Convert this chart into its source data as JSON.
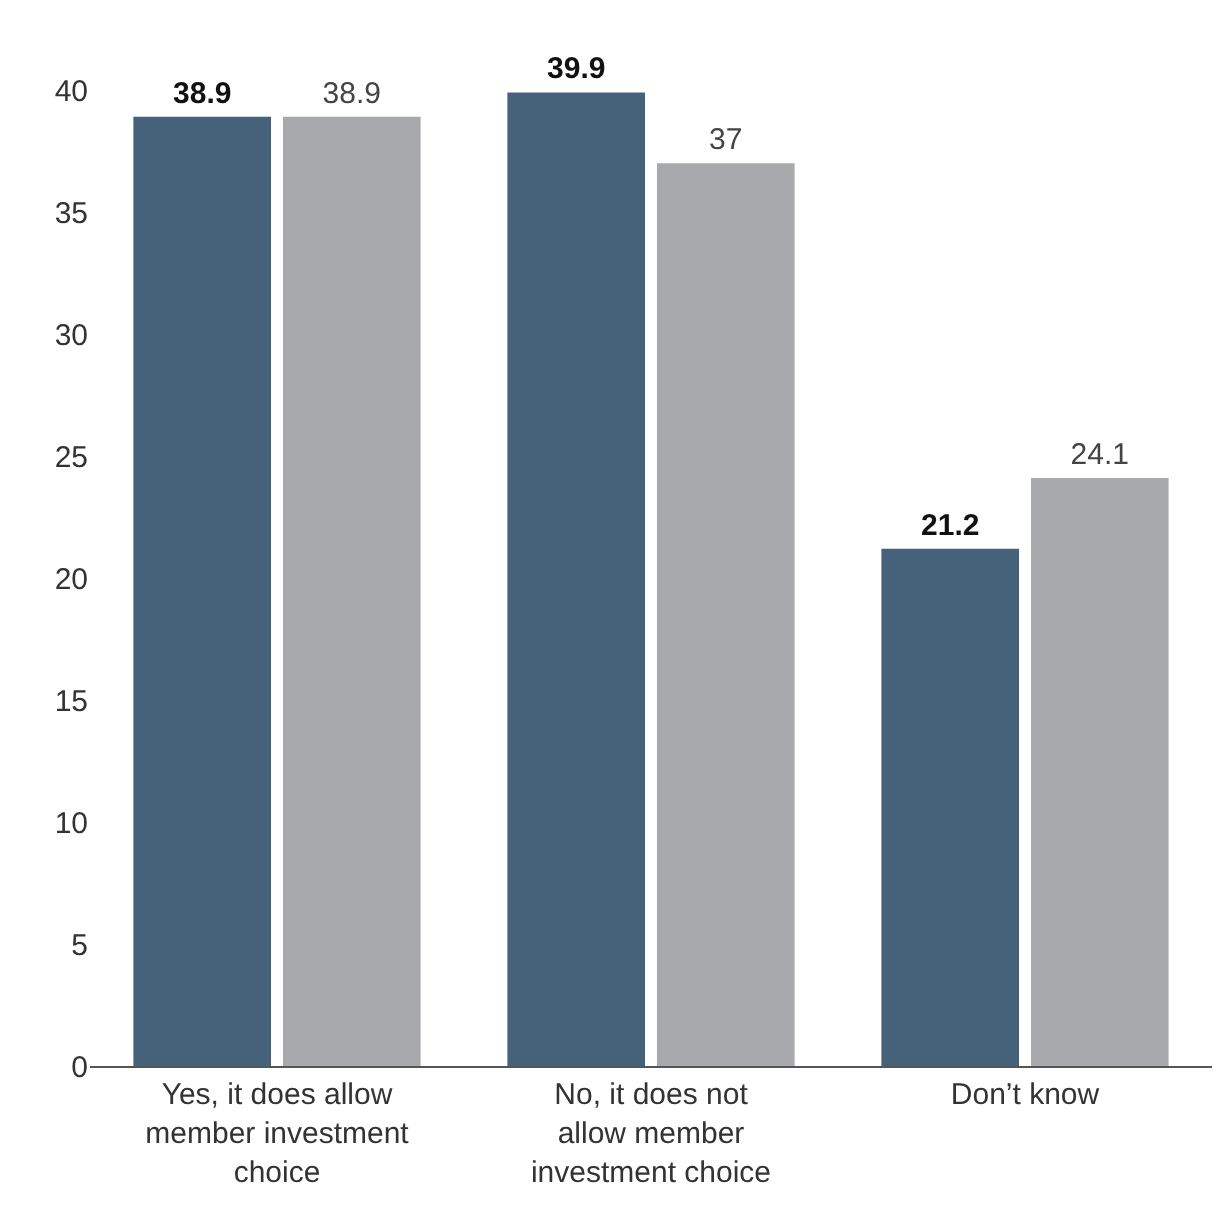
{
  "chart_data": {
    "type": "bar",
    "categories": [
      "Yes, it does allow member investment choice",
      "No, it does not allow member investment choice",
      "Don’t know"
    ],
    "series": [
      {
        "color": "#46627b",
        "values": [
          38.9,
          39.9,
          21.2
        ]
      },
      {
        "color": "#a7a9ac",
        "values": [
          38.9,
          37,
          24.1
        ]
      }
    ],
    "ylim": [
      0,
      40
    ],
    "yticks": [
      0,
      5,
      10,
      15,
      20,
      25,
      30,
      35,
      40
    ],
    "data_labels": true
  }
}
